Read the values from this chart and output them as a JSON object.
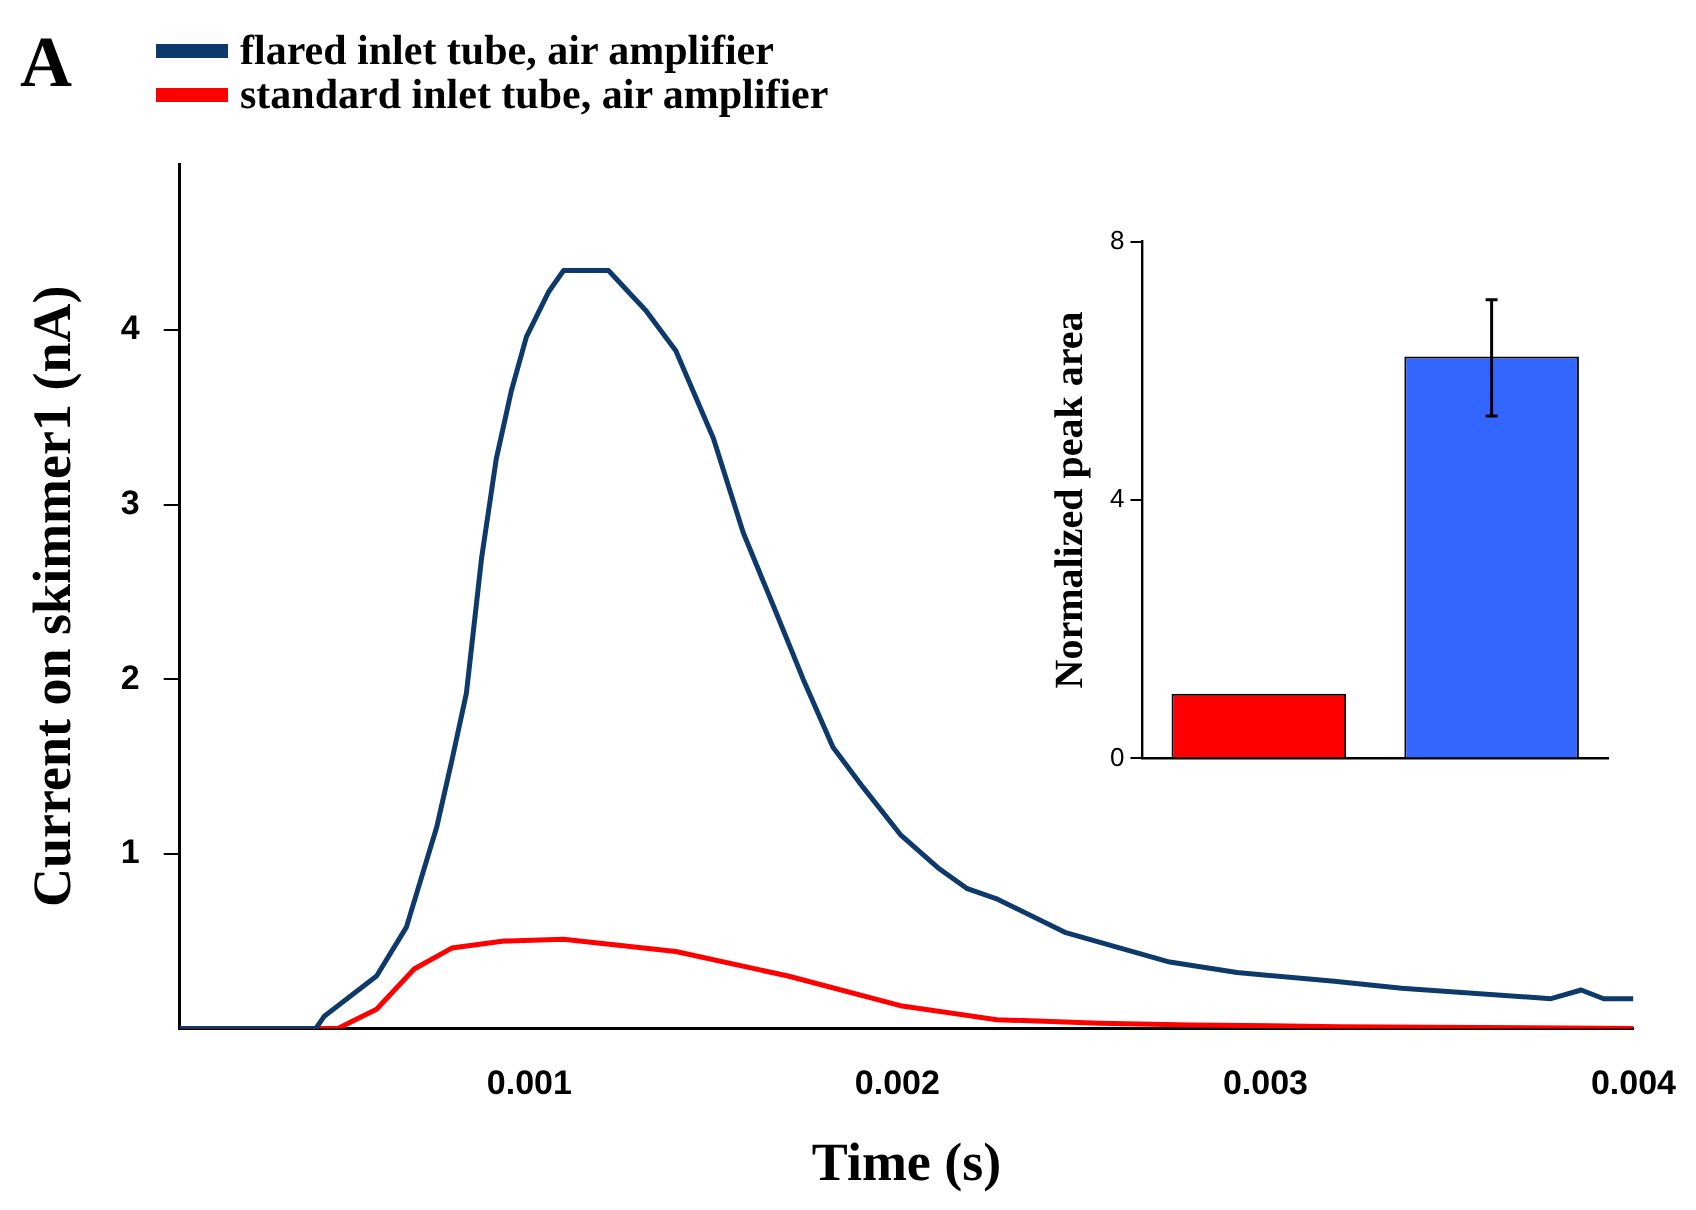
{
  "chart_data": [
    {
      "type": "line",
      "xlabel": "Time (s)",
      "ylabel": "Current on skimmer1 (nA)",
      "annotations": [
        "A"
      ],
      "legend": "top left",
      "grid": false,
      "marker": "none",
      "line_style": "solid",
      "xlim": [
        5e-05,
        0.004
      ],
      "xticks": [
        0.001,
        0.002,
        0.003,
        0.004
      ],
      "ylim": [
        0,
        4.95
      ],
      "yticks": [
        1,
        2,
        3,
        4
      ],
      "series": [
        {
          "name": "flared inlet tube, air amplifier",
          "color": "#0d3a6b",
          "x": [
            5e-05,
            0.0003,
            0.00042,
            0.000443,
            0.000585,
            0.000666,
            0.000748,
            0.000789,
            0.000829,
            0.00087,
            0.00091,
            0.000951,
            0.000992,
            0.001053,
            0.001093,
            0.001215,
            0.001317,
            0.001398,
            0.0015,
            0.001581,
            0.001663,
            0.001744,
            0.001825,
            0.001907,
            0.002008,
            0.00211,
            0.00219,
            0.002272,
            0.002455,
            0.00274,
            0.002923,
            0.003187,
            0.00337,
            0.003776,
            0.003858,
            0.003919,
            0.004
          ],
          "values": [
            0,
            0,
            0,
            0.07,
            0.3,
            0.58,
            1.15,
            1.53,
            1.92,
            2.69,
            3.26,
            3.65,
            3.96,
            4.22,
            4.34,
            4.34,
            4.11,
            3.88,
            3.38,
            2.84,
            2.42,
            2.0,
            1.61,
            1.38,
            1.11,
            0.92,
            0.8,
            0.74,
            0.55,
            0.38,
            0.32,
            0.27,
            0.23,
            0.17,
            0.22,
            0.17,
            0.17
          ]
        },
        {
          "name": "standard inlet tube, air amplifier",
          "color": "#ff0000",
          "x": [
            5e-05,
            0.0003,
            0.00048,
            0.000585,
            0.000687,
            0.000789,
            0.000931,
            0.001093,
            0.001398,
            0.001703,
            0.002008,
            0.00227,
            0.00255,
            0.0028,
            0.0032,
            0.004
          ],
          "values": [
            0,
            0,
            0,
            0.11,
            0.34,
            0.46,
            0.5,
            0.51,
            0.44,
            0.3,
            0.13,
            0.05,
            0.03,
            0.02,
            0.01,
            0
          ]
        }
      ]
    },
    {
      "type": "bar",
      "ylabel": "Normalized peak area",
      "categories": [
        null,
        null
      ],
      "values": [
        1,
        6.22
      ],
      "colors": [
        "#ff0000",
        "#3366ff"
      ],
      "errors": [
        null,
        [
          5.3,
          7.1
        ]
      ],
      "ylim": [
        0,
        8
      ],
      "yticks": [
        0,
        4,
        8
      ],
      "tick_labels": "y"
    }
  ]
}
